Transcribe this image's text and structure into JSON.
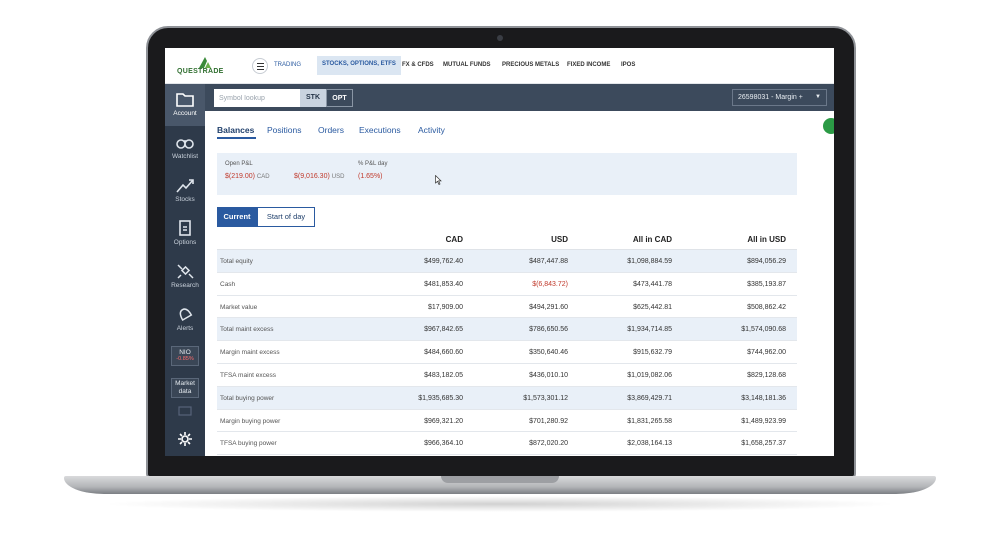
{
  "brand": {
    "logo_text": "QUESTRADE",
    "accent": "#2a5aa0",
    "logo_green": "#3a8a3a"
  },
  "topnav": {
    "trading_label": "TRADING",
    "items": [
      {
        "label": "STOCKS, OPTIONS, ETFS",
        "active": true
      },
      {
        "label": "FX & CFDS"
      },
      {
        "label": "MUTUAL FUNDS"
      },
      {
        "label": "PRECIOUS METALS"
      },
      {
        "label": "FIXED INCOME"
      },
      {
        "label": "IPOS"
      }
    ]
  },
  "sidebar": {
    "items": [
      {
        "label": "Account",
        "icon": "folder-icon",
        "active": true
      },
      {
        "label": "Watchlist",
        "icon": "binoculars-icon"
      },
      {
        "label": "Stocks",
        "icon": "chart-up-icon"
      },
      {
        "label": "Options",
        "icon": "document-icon"
      },
      {
        "label": "Research",
        "icon": "satellite-icon"
      },
      {
        "label": "Alerts",
        "icon": "bell-icon"
      }
    ],
    "ticker": {
      "symbol": "NIO",
      "change": "-0.85%"
    },
    "market_data_label": "Market data"
  },
  "toolbar": {
    "symbol_placeholder": "Symbol lookup",
    "stk_label": "STK",
    "opt_label": "OPT",
    "account_label": "26598031 - Margin +"
  },
  "tabs": [
    "Balances",
    "Positions",
    "Orders",
    "Executions",
    "Activity"
  ],
  "pnl": {
    "open_label": "Open P&L",
    "cad_value": "$(219.00)",
    "cad_unit": "CAD",
    "usd_value": "$(9,016.30)",
    "usd_unit": "USD",
    "pct_label": "% P&L day",
    "pct_value": "(1.65%)"
  },
  "view_toggle": {
    "current": "Current",
    "start": "Start of day"
  },
  "balances": {
    "columns": [
      "CAD",
      "USD",
      "All in CAD",
      "All in USD"
    ],
    "rows": [
      {
        "label": "Total equity",
        "values": [
          "$499,762.40",
          "$487,447.88",
          "$1,098,884.59",
          "$894,056.29"
        ]
      },
      {
        "label": "Cash",
        "values": [
          "$481,853.40",
          "$(6,843.72)",
          "$473,441.78",
          "$385,193.87"
        ]
      },
      {
        "label": "Market value",
        "values": [
          "$17,909.00",
          "$494,291.60",
          "$625,442.81",
          "$508,862.42"
        ]
      },
      {
        "label": "Total maint excess",
        "values": [
          "$967,842.65",
          "$786,650.56",
          "$1,934,714.85",
          "$1,574,090.68"
        ]
      },
      {
        "label": "Margin maint excess",
        "values": [
          "$484,660.60",
          "$350,640.46",
          "$915,632.79",
          "$744,962.00"
        ]
      },
      {
        "label": "TFSA maint excess",
        "values": [
          "$483,182.05",
          "$436,010.10",
          "$1,019,082.06",
          "$829,128.68"
        ]
      },
      {
        "label": "Total buying power",
        "values": [
          "$1,935,685.30",
          "$1,573,301.12",
          "$3,869,429.71",
          "$3,148,181.36"
        ]
      },
      {
        "label": "Margin buying power",
        "values": [
          "$969,321.20",
          "$701,280.92",
          "$1,831,265.58",
          "$1,489,923.99"
        ]
      },
      {
        "label": "TFSA buying power",
        "values": [
          "$966,364.10",
          "$872,020.20",
          "$2,038,164.13",
          "$1,658,257.37"
        ]
      }
    ]
  }
}
